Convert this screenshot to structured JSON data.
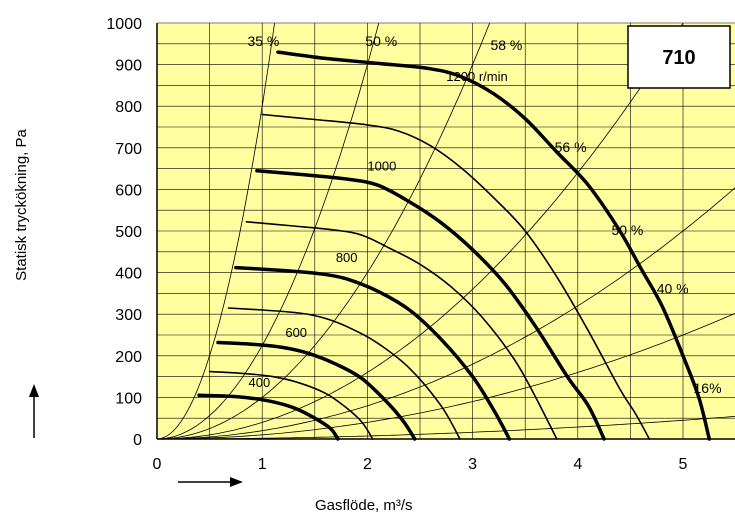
{
  "chart_data": {
    "type": "line",
    "model_label": "710",
    "xlabel": "Gasflöde, m³/s",
    "ylabel": "Statisk tryckökning, Pa",
    "xlim": [
      0,
      5.5
    ],
    "ylim": [
      0,
      1000
    ],
    "x_ticks": [
      "0",
      "1",
      "2",
      "3",
      "4",
      "5"
    ],
    "y_ticks": [
      "0",
      "100",
      "200",
      "300",
      "400",
      "500",
      "600",
      "700",
      "800",
      "900",
      "1000"
    ],
    "grid": true,
    "background_color": "#ffffa0",
    "speed_curves": [
      {
        "label": "1200 r/min",
        "bold": true,
        "points": [
          [
            1.15,
            930
          ],
          [
            1.6,
            915
          ],
          [
            2.1,
            903
          ],
          [
            2.6,
            890
          ],
          [
            2.9,
            870
          ],
          [
            3.2,
            830
          ],
          [
            3.5,
            770
          ],
          [
            3.8,
            690
          ],
          [
            4.1,
            610
          ],
          [
            4.4,
            500
          ],
          [
            4.6,
            410
          ],
          [
            4.8,
            320
          ],
          [
            5.0,
            200
          ],
          [
            5.15,
            100
          ],
          [
            5.25,
            0
          ]
        ]
      },
      {
        "label": "",
        "bold": false,
        "points": [
          [
            1.0,
            780
          ],
          [
            1.5,
            768
          ],
          [
            2.0,
            755
          ],
          [
            2.3,
            740
          ],
          [
            2.6,
            705
          ],
          [
            2.9,
            650
          ],
          [
            3.2,
            580
          ],
          [
            3.5,
            500
          ],
          [
            3.8,
            390
          ],
          [
            4.1,
            260
          ],
          [
            4.4,
            120
          ],
          [
            4.55,
            60
          ],
          [
            4.68,
            0
          ]
        ]
      },
      {
        "label": "1000",
        "bold": true,
        "points": [
          [
            0.95,
            645
          ],
          [
            1.4,
            635
          ],
          [
            1.8,
            625
          ],
          [
            2.1,
            610
          ],
          [
            2.4,
            570
          ],
          [
            2.7,
            520
          ],
          [
            3.0,
            455
          ],
          [
            3.3,
            375
          ],
          [
            3.6,
            270
          ],
          [
            3.9,
            150
          ],
          [
            4.1,
            80
          ],
          [
            4.25,
            0
          ]
        ]
      },
      {
        "label": "",
        "bold": false,
        "points": [
          [
            0.85,
            522
          ],
          [
            1.3,
            512
          ],
          [
            1.7,
            502
          ],
          [
            1.95,
            490
          ],
          [
            2.2,
            460
          ],
          [
            2.5,
            420
          ],
          [
            2.8,
            365
          ],
          [
            3.1,
            290
          ],
          [
            3.4,
            190
          ],
          [
            3.6,
            100
          ],
          [
            3.8,
            0
          ]
        ]
      },
      {
        "label": "800",
        "bold": true,
        "points": [
          [
            0.75,
            412
          ],
          [
            1.2,
            405
          ],
          [
            1.55,
            397
          ],
          [
            1.8,
            385
          ],
          [
            2.1,
            355
          ],
          [
            2.4,
            310
          ],
          [
            2.7,
            240
          ],
          [
            3.0,
            150
          ],
          [
            3.2,
            70
          ],
          [
            3.35,
            0
          ]
        ]
      },
      {
        "label": "",
        "bold": false,
        "points": [
          [
            0.68,
            315
          ],
          [
            1.0,
            310
          ],
          [
            1.35,
            303
          ],
          [
            1.6,
            290
          ],
          [
            1.85,
            265
          ],
          [
            2.1,
            230
          ],
          [
            2.4,
            170
          ],
          [
            2.7,
            80
          ],
          [
            2.88,
            0
          ]
        ]
      },
      {
        "label": "600",
        "bold": true,
        "points": [
          [
            0.58,
            232
          ],
          [
            0.9,
            228
          ],
          [
            1.2,
            220
          ],
          [
            1.45,
            205
          ],
          [
            1.7,
            180
          ],
          [
            1.95,
            145
          ],
          [
            2.2,
            85
          ],
          [
            2.35,
            40
          ],
          [
            2.45,
            0
          ]
        ]
      },
      {
        "label": "",
        "bold": false,
        "points": [
          [
            0.5,
            162
          ],
          [
            0.8,
            158
          ],
          [
            1.1,
            150
          ],
          [
            1.35,
            135
          ],
          [
            1.6,
            110
          ],
          [
            1.8,
            75
          ],
          [
            1.95,
            40
          ],
          [
            2.05,
            0
          ]
        ]
      },
      {
        "label": "400",
        "bold": true,
        "points": [
          [
            0.4,
            105
          ],
          [
            0.75,
            102
          ],
          [
            1.05,
            92
          ],
          [
            1.3,
            75
          ],
          [
            1.5,
            50
          ],
          [
            1.65,
            25
          ],
          [
            1.72,
            0
          ]
        ]
      }
    ],
    "efficiency_lines": [
      {
        "label": "35 %",
        "k": 800
      },
      {
        "label": "50 %",
        "k": 225
      },
      {
        "label": "58 %",
        "k": 100
      },
      {
        "label": "56 %",
        "k": 40
      },
      {
        "label": "50 %",
        "k": 20
      },
      {
        "label": "40 %",
        "k": 10
      },
      {
        "label": "16%",
        "k": 1.8
      }
    ]
  }
}
